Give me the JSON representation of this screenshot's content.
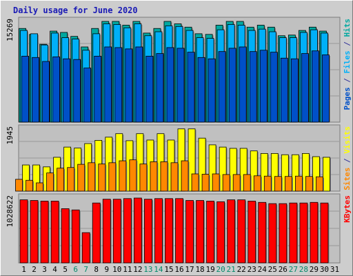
{
  "chart_data": {
    "title": "Daily usage for June 2020",
    "type": "bar",
    "days": [
      "1",
      "2",
      "3",
      "4",
      "5",
      "6",
      "7",
      "8",
      "9",
      "10",
      "11",
      "12",
      "13",
      "14",
      "15",
      "16",
      "17",
      "18",
      "19",
      "20",
      "21",
      "22",
      "23",
      "24",
      "25",
      "26",
      "27",
      "28",
      "29",
      "30",
      "31"
    ],
    "weekend_days": [
      "6",
      "7",
      "13",
      "14",
      "20",
      "21",
      "27",
      "28"
    ],
    "colors": {
      "hits": "#00a8a0",
      "files": "#00b0f8",
      "pages": "#0050c8",
      "visits": "#ffff00",
      "sites": "#ff8800",
      "kbytes": "#ff0000",
      "title": "#1a1ab5",
      "weekend_label": "#008a6a",
      "weekday_label": "#000000",
      "plot_bg": "#c0c0c0",
      "frame_bg": "#cdcdcd"
    },
    "panels": [
      {
        "id": "hits_files_pages",
        "max_label": "15269",
        "axis_max": 15269,
        "legend": [
          {
            "text": "Pages",
            "color": "#0050c8"
          },
          {
            "text": "Files",
            "color": "#00b0f8"
          },
          {
            "text": "Hits",
            "color": "#00a8a0"
          }
        ],
        "series": [
          {
            "name": "Hits",
            "color": "#00a8a0",
            "values": [
              14200,
              13300,
              11800,
              13800,
              13600,
              13000,
              11400,
              14200,
              15269,
              15269,
              14700,
              15269,
              13500,
              14200,
              15269,
              14900,
              14400,
              13400,
              13300,
              14700,
              15269,
              15269,
              14400,
              14700,
              14400,
              13100,
              13200,
              13900,
              14400,
              13800
            ]
          },
          {
            "name": "Files",
            "color": "#00b0f8",
            "values": [
              13900,
              13400,
              11700,
              13500,
              12800,
              12600,
              10900,
              13400,
              14900,
              14800,
              14300,
              14900,
              13100,
              13700,
              14600,
              14500,
              13900,
              12800,
              12700,
              14000,
              14800,
              14700,
              13900,
              14100,
              13700,
              12800,
              12800,
              13600,
              14000,
              13500
            ]
          },
          {
            "name": "Pages",
            "color": "#0050c8",
            "values": [
              10000,
              9800,
              9200,
              9900,
              9600,
              9500,
              8200,
              10000,
              11400,
              11300,
              11100,
              11400,
              10000,
              10400,
              11300,
              11200,
              10600,
              9800,
              9600,
              10700,
              11200,
              11400,
              10700,
              10900,
              10600,
              9700,
              9600,
              10400,
              10800,
              10200
            ]
          }
        ]
      },
      {
        "id": "visits_sites",
        "max_label": "1945",
        "axis_max": 1945,
        "legend": [
          {
            "text": "Sites",
            "color": "#ff8800"
          },
          {
            "text": "Visits",
            "color": "#ffff00"
          }
        ],
        "series": [
          {
            "name": "Visits",
            "color": "#ffff00",
            "values": [
              820,
              820,
              760,
              1060,
              1380,
              1350,
              1490,
              1590,
              1690,
              1800,
              1580,
              1800,
              1600,
              1800,
              1600,
              1950,
              1950,
              1660,
              1450,
              1380,
              1340,
              1340,
              1260,
              1180,
              1180,
              1140,
              1140,
              1180,
              1080,
              1060
            ]
          },
          {
            "name": "Sites",
            "color": "#ff8800",
            "values": [
              370,
              340,
              260,
              570,
              720,
              740,
              840,
              890,
              850,
              890,
              950,
              980,
              850,
              920,
              920,
              890,
              950,
              540,
              530,
              540,
              520,
              520,
              520,
              480,
              470,
              460,
              460,
              470,
              460,
              450
            ]
          }
        ]
      },
      {
        "id": "kbytes",
        "max_label": "1028622",
        "axis_max": 1028622,
        "legend": [
          {
            "text": "KBytes",
            "color": "#ff0000"
          }
        ],
        "series": [
          {
            "name": "KBytes",
            "color": "#ff0000",
            "values": [
              1000000,
              990000,
              980000,
              980000,
              860000,
              840000,
              480000,
              950000,
              1010000,
              1010000,
              1020000,
              1028622,
              1010000,
              1020000,
              1020000,
              1020000,
              990000,
              990000,
              980000,
              970000,
              1000000,
              1000000,
              980000,
              960000,
              940000,
              940000,
              950000,
              950000,
              960000,
              950000
            ]
          }
        ]
      }
    ]
  }
}
